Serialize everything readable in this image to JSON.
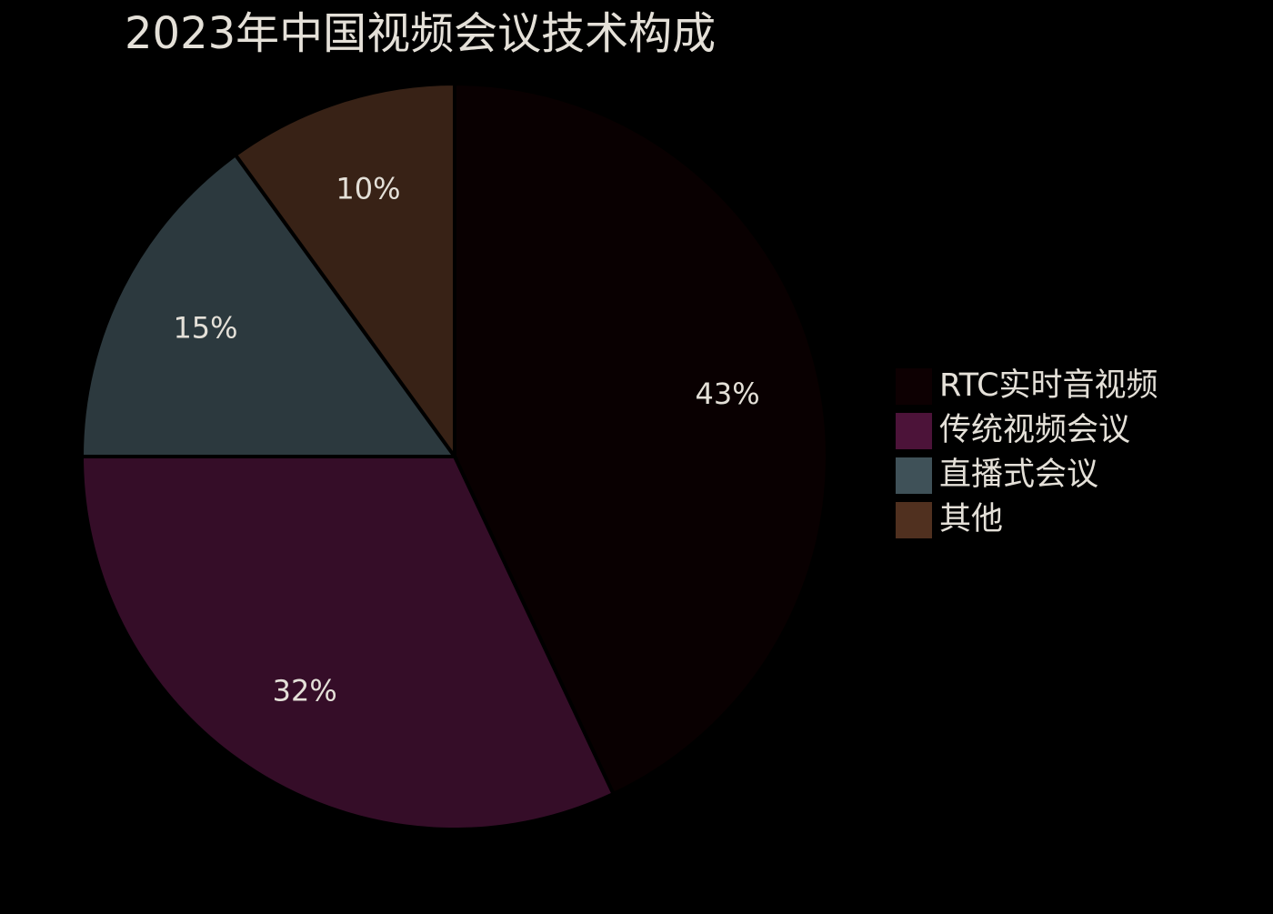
{
  "chart_data": {
    "type": "pie",
    "title": "2023年中国视频会议技术构成",
    "categories": [
      "RTC实时音视频",
      "传统视频会议",
      "直播式会议",
      "其他"
    ],
    "values": [
      43,
      32,
      15,
      10
    ],
    "value_labels": [
      "43%",
      "32%",
      "15%",
      "10%"
    ],
    "colors": [
      "#0d0002",
      "#4c1339",
      "#3f5158",
      "#50301f"
    ],
    "legend": "right"
  }
}
